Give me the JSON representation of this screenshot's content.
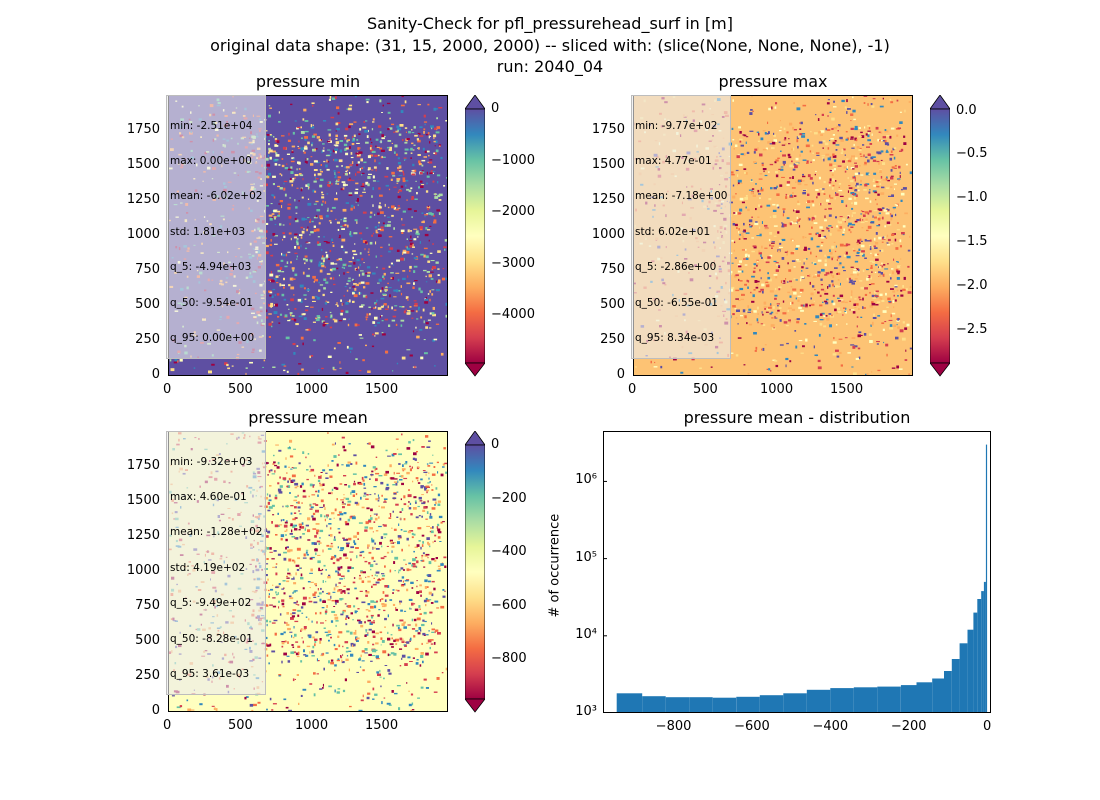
{
  "figure": {
    "suptitle_lines": [
      "Sanity-Check for pfl_pressurehead_surf in [m]",
      "original data shape: (31, 15, 2000, 2000) -- sliced with: (slice(None, None, None), -1)",
      "run: 2040_04"
    ]
  },
  "colors": {
    "spectral": [
      "#9e0142",
      "#d53e4f",
      "#f46d43",
      "#fdae61",
      "#fee08b",
      "#ffffbf",
      "#e6f598",
      "#abdda4",
      "#66c2a5",
      "#3288bd",
      "#5e4fa2"
    ],
    "hist_bar": "#1f77b4"
  },
  "panels": [
    {
      "title": "pressure min",
      "stats": [
        "min: -2.51e+04",
        "max: 0.00e+00",
        "mean: -6.02e+02",
        "std: 1.81e+03",
        "q_5: -4.94e+03",
        "q_50: -9.54e-01",
        "q_95: 0.00e+00"
      ],
      "xticks": [
        "0",
        "500",
        "1000",
        "1500"
      ],
      "yticks": [
        "0",
        "250",
        "500",
        "750",
        "1000",
        "1250",
        "1500",
        "1750"
      ],
      "colorbar": {
        "vmin": -4900,
        "vmax": 0,
        "ticks": [
          "0",
          "−1000",
          "−2000",
          "−3000",
          "−4000"
        ],
        "extend_top": true,
        "extend_bottom": true
      },
      "background_color": "#5e4fa2"
    },
    {
      "title": "pressure max",
      "stats": [
        "min: -9.77e+02",
        "max: 4.77e-01",
        "mean: -7.18e+00",
        "std: 6.02e+01",
        "q_5: -2.86e+00",
        "q_50: -6.55e-01",
        "q_95: 8.34e-03"
      ],
      "xticks": [
        "0",
        "500",
        "1000",
        "1500"
      ],
      "yticks": [
        "0",
        "250",
        "500",
        "750",
        "1000",
        "1250",
        "1500",
        "1750"
      ],
      "colorbar": {
        "vmin": -2.95,
        "vmax": 0,
        "ticks": [
          "0.0",
          "−0.5",
          "−1.0",
          "−1.5",
          "−2.0",
          "−2.5"
        ],
        "extend_top": true,
        "extend_bottom": true
      },
      "background_color": "#fdc374"
    },
    {
      "title": "pressure mean",
      "stats": [
        "min: -9.32e+03",
        "max: 4.60e-01",
        "mean: -1.28e+02",
        "std: 4.19e+02",
        "q_5: -9.49e+02",
        "q_50: -8.28e-01",
        "q_95: 3.61e-03"
      ],
      "xticks": [
        "0",
        "500",
        "1000",
        "1500"
      ],
      "yticks": [
        "0",
        "250",
        "500",
        "750",
        "1000",
        "1250",
        "1500",
        "1750"
      ],
      "colorbar": {
        "vmin": -950,
        "vmax": 0,
        "ticks": [
          "0",
          "−200",
          "−400",
          "−600",
          "−800"
        ],
        "extend_top": true,
        "extend_bottom": true
      },
      "background_color": "#ffffbf"
    }
  ],
  "chart_data": {
    "type": "bar",
    "title": "pressure mean - distribution",
    "xlabel": "",
    "ylabel": "# of occurrence",
    "yscale": "log",
    "xlim": [
      -980,
      10
    ],
    "ylim": [
      1000,
      4500000
    ],
    "xticks": [
      "−800",
      "−600",
      "−400",
      "−200",
      "0"
    ],
    "xtick_values": [
      -800,
      -600,
      -400,
      -200,
      0
    ],
    "yticks": [
      "10³",
      "10⁴",
      "10⁵",
      "10⁶"
    ],
    "ytick_values": [
      1000,
      10000,
      100000,
      1000000
    ],
    "bins": [
      {
        "x": -945,
        "y": 1800
      },
      {
        "x": -880,
        "y": 1650
      },
      {
        "x": -820,
        "y": 1600
      },
      {
        "x": -760,
        "y": 1600
      },
      {
        "x": -700,
        "y": 1580
      },
      {
        "x": -640,
        "y": 1620
      },
      {
        "x": -580,
        "y": 1700
      },
      {
        "x": -520,
        "y": 1800
      },
      {
        "x": -460,
        "y": 2000
      },
      {
        "x": -400,
        "y": 2100
      },
      {
        "x": -340,
        "y": 2150
      },
      {
        "x": -280,
        "y": 2200
      },
      {
        "x": -220,
        "y": 2300
      },
      {
        "x": -180,
        "y": 2500
      },
      {
        "x": -140,
        "y": 2800
      },
      {
        "x": -110,
        "y": 3500
      },
      {
        "x": -90,
        "y": 5000
      },
      {
        "x": -70,
        "y": 8000
      },
      {
        "x": -50,
        "y": 12000
      },
      {
        "x": -35,
        "y": 20000
      },
      {
        "x": -25,
        "y": 30000
      },
      {
        "x": -15,
        "y": 38000
      },
      {
        "x": -8,
        "y": 50000
      },
      {
        "x": -3,
        "y": 3000000
      }
    ]
  }
}
